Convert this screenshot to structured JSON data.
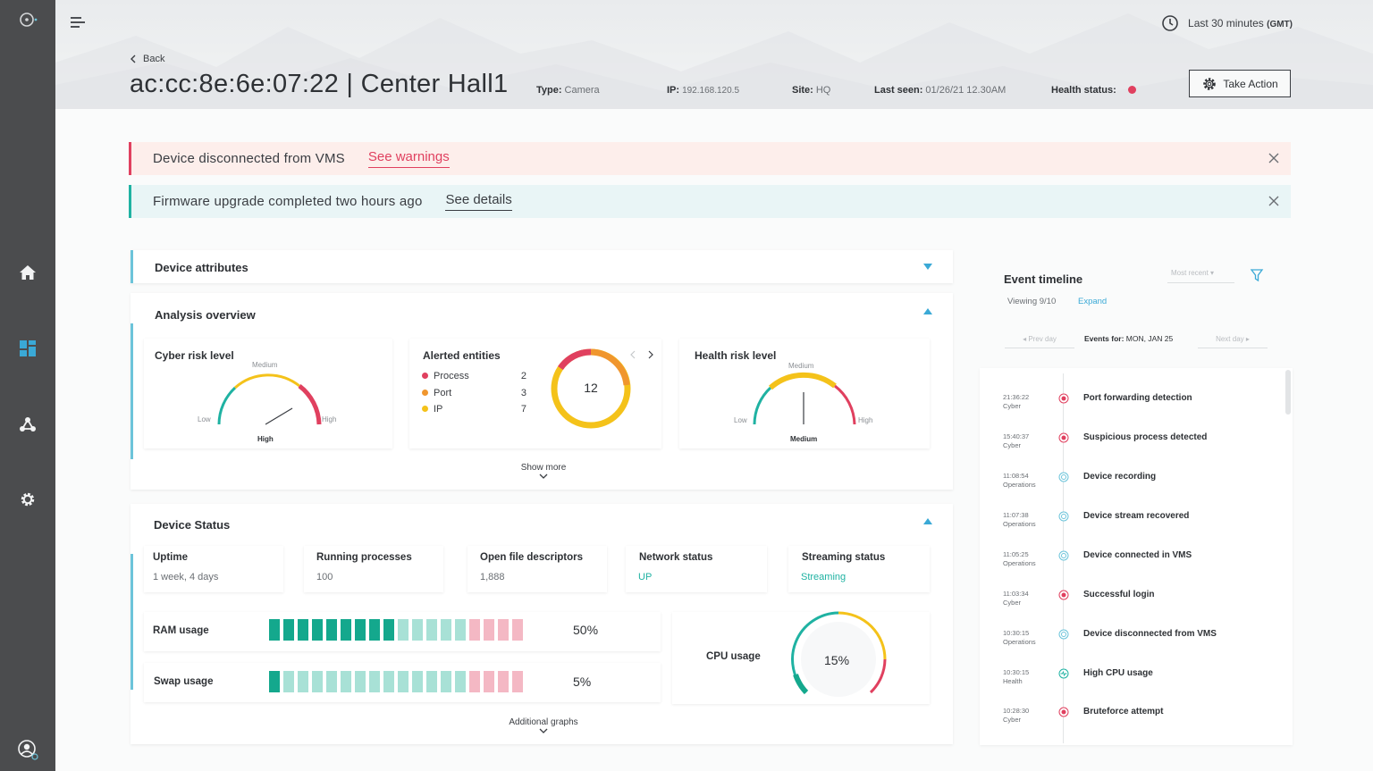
{
  "header": {
    "time_range": "Last 30 minutes",
    "time_zone": "(GMT)",
    "back_label": "Back",
    "device_title": "ac:cc:8e:6e:07:22 | Center Hall1",
    "type_label": "Type:",
    "type_value": "Camera",
    "ip_label": "IP:",
    "ip_value": "192.168.120.5",
    "site_label": "Site:",
    "site_value": "HQ",
    "last_seen_label": "Last seen:",
    "last_seen_value": "01/26/21 12.30AM",
    "health_label": "Health status:",
    "take_action_label": "Take Action"
  },
  "banners": {
    "warning_text": "Device disconnected from VMS",
    "warning_link": "See warnings",
    "info_text": "Firmware upgrade completed two hours ago",
    "info_link": "See details"
  },
  "device_attributes": {
    "title": "Device attributes"
  },
  "analysis": {
    "title": "Analysis overview",
    "cyber": {
      "title": "Cyber risk level",
      "low": "Low",
      "medium": "Medium",
      "high": "High",
      "value": "High"
    },
    "alerted": {
      "title": "Alerted entities",
      "total": "12",
      "entities": [
        {
          "name": "Process",
          "count": "2",
          "color": "#e0405f"
        },
        {
          "name": "Port",
          "count": "3",
          "color": "#f0962e"
        },
        {
          "name": "IP",
          "count": "7",
          "color": "#f4c21a"
        }
      ]
    },
    "health": {
      "title": "Health risk level",
      "low": "Low",
      "medium": "Medium",
      "high": "High",
      "value": "Medium"
    },
    "show_more": "Show more"
  },
  "device_status": {
    "title": "Device Status",
    "uptime_label": "Uptime",
    "uptime_value": "1 week, 4 days",
    "processes_label": "Running processes",
    "processes_value": "100",
    "fd_label": "Open file descriptors",
    "fd_value": "1,888",
    "network_label": "Network status",
    "network_value": "UP",
    "streaming_label": "Streaming status",
    "streaming_value": "Streaming",
    "ram_label": "RAM usage",
    "ram_value": "50%",
    "swap_label": "Swap usage",
    "swap_value": "5%",
    "cpu_label": "CPU usage",
    "cpu_value": "15%",
    "additional": "Additional graphs"
  },
  "timeline": {
    "title": "Event timeline",
    "sort": "Most recent",
    "viewing": "Viewing 9/10",
    "expand": "Expand",
    "prev_day": "Prev day",
    "events_for_label": "Events for:",
    "events_for_date": "MON, JAN 25",
    "next_day": "Next day",
    "events": [
      {
        "time": "21:36:22",
        "category": "Cyber",
        "title": "Port forwarding detection"
      },
      {
        "time": "15:40:37",
        "category": "Cyber",
        "title": "Suspicious process detected"
      },
      {
        "time": "11:08:54",
        "category": "Operations",
        "title": "Device recording"
      },
      {
        "time": "11:07:38",
        "category": "Operations",
        "title": "Device stream recovered"
      },
      {
        "time": "11:05:25",
        "category": "Operations",
        "title": "Device connected in VMS"
      },
      {
        "time": "11:03:34",
        "category": "Cyber",
        "title": "Successful login"
      },
      {
        "time": "10:30:15",
        "category": "Operations",
        "title": "Device disconnected from VMS"
      },
      {
        "time": "10:30:15",
        "category": "Health",
        "title": "High CPU usage"
      },
      {
        "time": "10:28:30",
        "category": "Cyber",
        "title": "Bruteforce attempt"
      }
    ]
  },
  "colors": {
    "danger": "#e0405f",
    "accent": "#1fb2a2",
    "link": "#3aa9d6",
    "sidebar": "#4b4c4e"
  }
}
